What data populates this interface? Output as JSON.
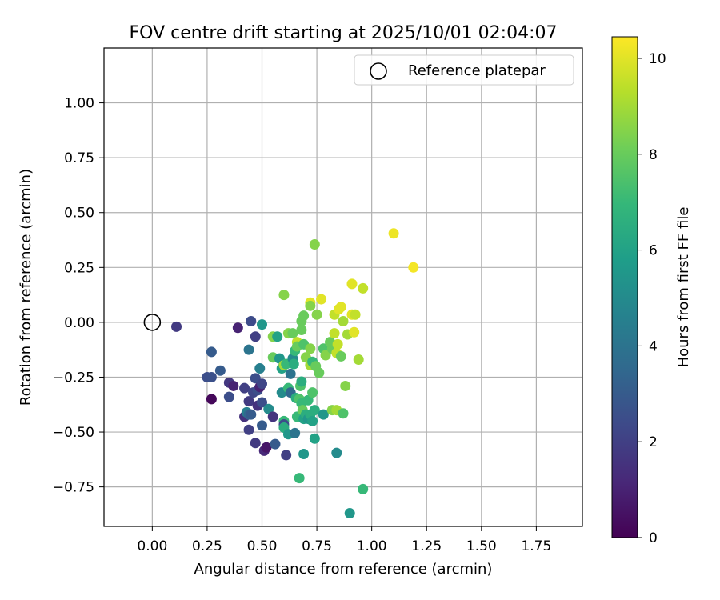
{
  "chart_data": {
    "type": "scatter",
    "title": "FOV centre drift starting at 2025/10/01 02:04:07",
    "xlabel": "Angular distance from reference (arcmin)",
    "ylabel": "Rotation from reference (arcmin)",
    "xlim": [
      -0.22,
      1.96
    ],
    "ylim": [
      -0.93,
      1.25
    ],
    "x_ticks": [
      0.0,
      0.25,
      0.5,
      0.75,
      1.0,
      1.25,
      1.5,
      1.75
    ],
    "x_tick_labels": [
      "0.00",
      "0.25",
      "0.50",
      "0.75",
      "1.00",
      "1.25",
      "1.50",
      "1.75"
    ],
    "y_ticks": [
      -0.75,
      -0.5,
      -0.25,
      0.0,
      0.25,
      0.5,
      0.75,
      1.0
    ],
    "y_tick_labels": [
      "−0.75",
      "−0.50",
      "−0.25",
      "0.00",
      "0.25",
      "0.50",
      "0.75",
      "1.00"
    ],
    "grid": true,
    "legend": {
      "placement": "top-right",
      "entries": [
        {
          "label": "Reference platepar",
          "marker": "open-circle"
        }
      ]
    },
    "reference": {
      "x": 0.0,
      "y": 0.0
    },
    "colorbar": {
      "label": "Hours from first FF file",
      "min": 0,
      "max": 10.45,
      "ticks": [
        0,
        2,
        4,
        6,
        8,
        10
      ],
      "tick_labels": [
        "0",
        "2",
        "4",
        "6",
        "8",
        "10"
      ],
      "colormap": "viridis",
      "colormap_stops": [
        "#440154",
        "#482878",
        "#3e4989",
        "#31688e",
        "#26828e",
        "#1f9e89",
        "#35b779",
        "#6ece58",
        "#b5de2b",
        "#fde725"
      ]
    },
    "points": [
      {
        "x": 0.11,
        "y": -0.02,
        "c": 1.8
      },
      {
        "x": 0.27,
        "y": -0.35,
        "c": 0.2
      },
      {
        "x": 0.25,
        "y": -0.25,
        "c": 2.5
      },
      {
        "x": 0.27,
        "y": -0.25,
        "c": 2.6
      },
      {
        "x": 0.27,
        "y": -0.135,
        "c": 3.0
      },
      {
        "x": 0.31,
        "y": -0.22,
        "c": 3.0
      },
      {
        "x": 0.35,
        "y": -0.275,
        "c": 1.7
      },
      {
        "x": 0.37,
        "y": -0.29,
        "c": 1.0
      },
      {
        "x": 0.35,
        "y": -0.34,
        "c": 2.5
      },
      {
        "x": 0.39,
        "y": -0.025,
        "c": 1.0
      },
      {
        "x": 0.42,
        "y": -0.3,
        "c": 2.0
      },
      {
        "x": 0.42,
        "y": -0.43,
        "c": 1.5
      },
      {
        "x": 0.44,
        "y": -0.36,
        "c": 1.8
      },
      {
        "x": 0.44,
        "y": -0.49,
        "c": 2.0
      },
      {
        "x": 0.45,
        "y": 0.005,
        "c": 2.4
      },
      {
        "x": 0.46,
        "y": -0.32,
        "c": 2.2
      },
      {
        "x": 0.47,
        "y": -0.255,
        "c": 2.5
      },
      {
        "x": 0.47,
        "y": -0.065,
        "c": 2.0
      },
      {
        "x": 0.47,
        "y": -0.55,
        "c": 1.8
      },
      {
        "x": 0.44,
        "y": -0.125,
        "c": 4.0
      },
      {
        "x": 0.43,
        "y": -0.41,
        "c": 4.5
      },
      {
        "x": 0.44,
        "y": -0.42,
        "c": 3.5
      },
      {
        "x": 0.45,
        "y": -0.42,
        "c": 3.0
      },
      {
        "x": 0.48,
        "y": -0.38,
        "c": 1.5
      },
      {
        "x": 0.48,
        "y": -0.31,
        "c": 2.5
      },
      {
        "x": 0.49,
        "y": -0.295,
        "c": 1.0
      },
      {
        "x": 0.49,
        "y": -0.21,
        "c": 4.5
      },
      {
        "x": 0.5,
        "y": -0.01,
        "c": 5.5
      },
      {
        "x": 0.5,
        "y": -0.28,
        "c": 2.2
      },
      {
        "x": 0.5,
        "y": -0.365,
        "c": 2.5
      },
      {
        "x": 0.5,
        "y": -0.47,
        "c": 3.0
      },
      {
        "x": 0.51,
        "y": -0.585,
        "c": 1.2
      },
      {
        "x": 0.52,
        "y": -0.57,
        "c": 0.6
      },
      {
        "x": 0.53,
        "y": -0.395,
        "c": 5.0
      },
      {
        "x": 0.55,
        "y": -0.43,
        "c": 1.6
      },
      {
        "x": 0.55,
        "y": -0.065,
        "c": 8.5
      },
      {
        "x": 0.55,
        "y": -0.16,
        "c": 8.0
      },
      {
        "x": 0.56,
        "y": -0.555,
        "c": 3.0
      },
      {
        "x": 0.57,
        "y": -0.065,
        "c": 6.0
      },
      {
        "x": 0.58,
        "y": -0.165,
        "c": 5.5
      },
      {
        "x": 0.59,
        "y": -0.21,
        "c": 6.0
      },
      {
        "x": 0.59,
        "y": -0.32,
        "c": 5.0
      },
      {
        "x": 0.6,
        "y": -0.195,
        "c": 9.0
      },
      {
        "x": 0.6,
        "y": -0.45,
        "c": 7.0
      },
      {
        "x": 0.6,
        "y": -0.465,
        "c": 2.5
      },
      {
        "x": 0.6,
        "y": -0.48,
        "c": 6.5
      },
      {
        "x": 0.6,
        "y": 0.125,
        "c": 8.5
      },
      {
        "x": 0.61,
        "y": -0.605,
        "c": 2.0
      },
      {
        "x": 0.61,
        "y": -0.19,
        "c": 7.0
      },
      {
        "x": 0.62,
        "y": -0.05,
        "c": 8.5
      },
      {
        "x": 0.62,
        "y": -0.3,
        "c": 7.0
      },
      {
        "x": 0.62,
        "y": -0.51,
        "c": 5.5
      },
      {
        "x": 0.63,
        "y": -0.32,
        "c": 3.5
      },
      {
        "x": 0.63,
        "y": -0.235,
        "c": 4.0
      },
      {
        "x": 0.64,
        "y": -0.165,
        "c": 5.0
      },
      {
        "x": 0.64,
        "y": -0.05,
        "c": 8.0
      },
      {
        "x": 0.645,
        "y": -0.19,
        "c": 6.5
      },
      {
        "x": 0.65,
        "y": -0.13,
        "c": 7.0
      },
      {
        "x": 0.65,
        "y": -0.505,
        "c": 4.0
      },
      {
        "x": 0.655,
        "y": -0.345,
        "c": 6.5
      },
      {
        "x": 0.66,
        "y": -0.09,
        "c": 9.5
      },
      {
        "x": 0.66,
        "y": -0.11,
        "c": 8.0
      },
      {
        "x": 0.66,
        "y": -0.43,
        "c": 7.0
      },
      {
        "x": 0.67,
        "y": -0.71,
        "c": 7.0
      },
      {
        "x": 0.67,
        "y": -0.35,
        "c": 7.5
      },
      {
        "x": 0.675,
        "y": -0.29,
        "c": 7.5
      },
      {
        "x": 0.68,
        "y": -0.27,
        "c": 6.5
      },
      {
        "x": 0.68,
        "y": -0.37,
        "c": 7.0
      },
      {
        "x": 0.68,
        "y": -0.035,
        "c": 8.0
      },
      {
        "x": 0.68,
        "y": 0.005,
        "c": 8.0
      },
      {
        "x": 0.685,
        "y": -0.4,
        "c": 8.0
      },
      {
        "x": 0.69,
        "y": -0.6,
        "c": 5.5
      },
      {
        "x": 0.69,
        "y": -0.44,
        "c": 6.0
      },
      {
        "x": 0.69,
        "y": -0.1,
        "c": 7.5
      },
      {
        "x": 0.69,
        "y": 0.03,
        "c": 8.0
      },
      {
        "x": 0.7,
        "y": -0.42,
        "c": 6.5
      },
      {
        "x": 0.7,
        "y": -0.16,
        "c": 8.5
      },
      {
        "x": 0.71,
        "y": -0.355,
        "c": 7.0
      },
      {
        "x": 0.71,
        "y": -0.44,
        "c": 5.5
      },
      {
        "x": 0.72,
        "y": -0.195,
        "c": 9.0
      },
      {
        "x": 0.72,
        "y": -0.12,
        "c": 8.5
      },
      {
        "x": 0.72,
        "y": 0.09,
        "c": 10.0
      },
      {
        "x": 0.72,
        "y": 0.075,
        "c": 8.5
      },
      {
        "x": 0.72,
        "y": -0.42,
        "c": 6.5
      },
      {
        "x": 0.73,
        "y": -0.45,
        "c": 6.0
      },
      {
        "x": 0.73,
        "y": -0.32,
        "c": 7.5
      },
      {
        "x": 0.73,
        "y": -0.18,
        "c": 7.0
      },
      {
        "x": 0.74,
        "y": 0.355,
        "c": 8.5
      },
      {
        "x": 0.74,
        "y": -0.53,
        "c": 6.0
      },
      {
        "x": 0.74,
        "y": -0.4,
        "c": 6.5
      },
      {
        "x": 0.745,
        "y": -0.2,
        "c": 8.0
      },
      {
        "x": 0.75,
        "y": 0.035,
        "c": 8.5
      },
      {
        "x": 0.76,
        "y": -0.23,
        "c": 8.0
      },
      {
        "x": 0.77,
        "y": 0.105,
        "c": 10.0
      },
      {
        "x": 0.78,
        "y": -0.42,
        "c": 5.5
      },
      {
        "x": 0.78,
        "y": -0.12,
        "c": 7.5
      },
      {
        "x": 0.79,
        "y": -0.15,
        "c": 8.5
      },
      {
        "x": 0.81,
        "y": -0.09,
        "c": 8.0
      },
      {
        "x": 0.82,
        "y": -0.4,
        "c": 8.5
      },
      {
        "x": 0.82,
        "y": -0.12,
        "c": 8.0
      },
      {
        "x": 0.83,
        "y": -0.05,
        "c": 9.5
      },
      {
        "x": 0.83,
        "y": 0.035,
        "c": 9.5
      },
      {
        "x": 0.84,
        "y": -0.4,
        "c": 9.0
      },
      {
        "x": 0.84,
        "y": -0.595,
        "c": 5.0
      },
      {
        "x": 0.84,
        "y": -0.14,
        "c": 9.5
      },
      {
        "x": 0.845,
        "y": -0.1,
        "c": 9.5
      },
      {
        "x": 0.85,
        "y": 0.06,
        "c": 10.0
      },
      {
        "x": 0.86,
        "y": 0.07,
        "c": 10.0
      },
      {
        "x": 0.86,
        "y": -0.155,
        "c": 8.0
      },
      {
        "x": 0.87,
        "y": 0.005,
        "c": 9.0
      },
      {
        "x": 0.87,
        "y": -0.415,
        "c": 7.5
      },
      {
        "x": 0.88,
        "y": -0.29,
        "c": 8.5
      },
      {
        "x": 0.89,
        "y": -0.055,
        "c": 9.0
      },
      {
        "x": 0.9,
        "y": -0.87,
        "c": 5.5
      },
      {
        "x": 0.91,
        "y": 0.175,
        "c": 10.0
      },
      {
        "x": 0.91,
        "y": 0.035,
        "c": 10.0
      },
      {
        "x": 0.92,
        "y": -0.045,
        "c": 10.0
      },
      {
        "x": 0.925,
        "y": 0.035,
        "c": 9.5
      },
      {
        "x": 0.94,
        "y": -0.17,
        "c": 9.0
      },
      {
        "x": 0.96,
        "y": 0.155,
        "c": 9.5
      },
      {
        "x": 0.96,
        "y": -0.76,
        "c": 7.0
      },
      {
        "x": 1.1,
        "y": 0.405,
        "c": 10.2
      },
      {
        "x": 1.19,
        "y": 0.25,
        "c": 10.3
      }
    ]
  }
}
